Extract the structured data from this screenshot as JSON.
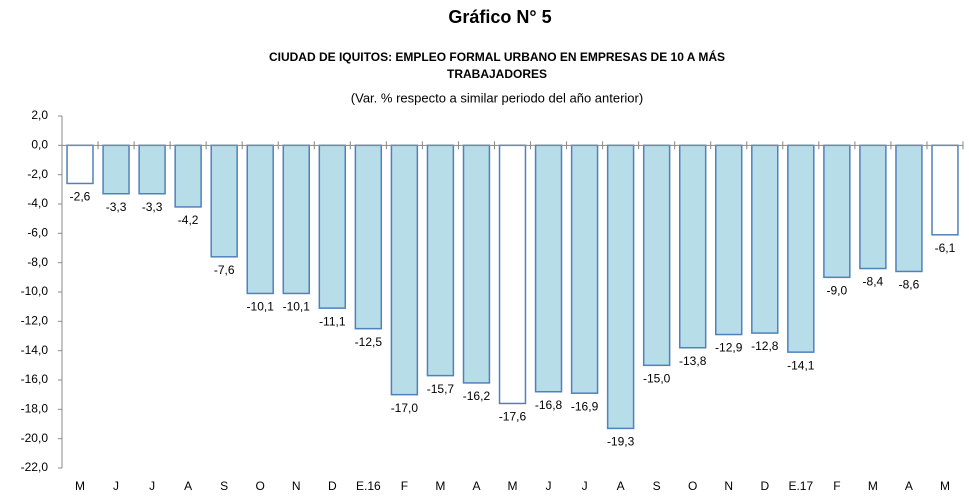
{
  "chart_data": {
    "type": "bar",
    "title": "Gráfico N° 5",
    "subtitle": [
      "CIUDAD DE IQUITOS: EMPLEO FORMAL URBANO EN EMPRESAS DE 10 A MÁS",
      "TRABAJADORES"
    ],
    "note": "(Var. % respecto a similar periodo del año anterior)",
    "categories": [
      "M",
      "J",
      "J",
      "A",
      "S",
      "O",
      "N",
      "D",
      "E.16",
      "F",
      "M",
      "A",
      "M",
      "J",
      "J",
      "A",
      "S",
      "O",
      "N",
      "D",
      "E.17",
      "F",
      "M",
      "A",
      "M"
    ],
    "values": [
      -2.6,
      -3.3,
      -3.3,
      -4.2,
      -7.6,
      -10.1,
      -10.1,
      -11.1,
      -12.5,
      -17.0,
      -15.7,
      -16.2,
      -17.6,
      -16.8,
      -16.9,
      -19.3,
      -15.0,
      -13.8,
      -12.9,
      -12.8,
      -14.1,
      -9.0,
      -8.4,
      -8.6,
      -6.1
    ],
    "value_labels": [
      "-2,6",
      "-3,3",
      "-3,3",
      "-4,2",
      "-7,6",
      "-10,1",
      "-10,1",
      "-11,1",
      "-12,5",
      "-17,0",
      "-15,7",
      "-16,2",
      "-17,6",
      "-16,8",
      "-16,9",
      "-19,3",
      "-15,0",
      "-13,8",
      "-12,9",
      "-12,8",
      "-14,1",
      "-9,0",
      "-8,4",
      "-8,6",
      "-6,1"
    ],
    "colors": [
      "#ffffff",
      "#b7dde8",
      "#b7dde8",
      "#b7dde8",
      "#b7dde8",
      "#b7dde8",
      "#b7dde8",
      "#b7dde8",
      "#b7dde8",
      "#b7dde8",
      "#b7dde8",
      "#b7dde8",
      "#ffffff",
      "#b7dde8",
      "#b7dde8",
      "#b7dde8",
      "#b7dde8",
      "#b7dde8",
      "#b7dde8",
      "#b7dde8",
      "#b7dde8",
      "#b7dde8",
      "#b7dde8",
      "#b7dde8",
      "#ffffff"
    ],
    "edge_color": "#4f81bd",
    "ylim": [
      -22,
      2
    ],
    "yticks": [
      {
        "value": 2,
        "label": "2,0"
      },
      {
        "value": 0,
        "label": "0,0"
      },
      {
        "value": -2,
        "label": "-2,0"
      },
      {
        "value": -4,
        "label": "-4,0"
      },
      {
        "value": -6,
        "label": "-6,0"
      },
      {
        "value": -8,
        "label": "-8,0"
      },
      {
        "value": -10,
        "label": "-10,0"
      },
      {
        "value": -12,
        "label": "-12,0"
      },
      {
        "value": -14,
        "label": "-14,0"
      },
      {
        "value": -16,
        "label": "-16,0"
      },
      {
        "value": -18,
        "label": "-18,0"
      },
      {
        "value": -20,
        "label": "-20,0"
      },
      {
        "value": -22,
        "label": "-22,0"
      }
    ]
  }
}
